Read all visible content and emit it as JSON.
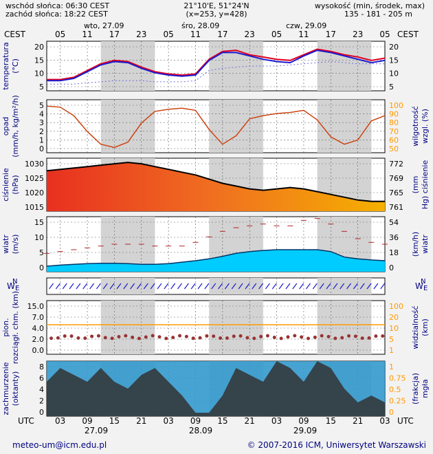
{
  "header": {
    "sunrise": "wschód słońca: 06:30 CEST",
    "sunset": "zachód słońca: 18:22 CEST",
    "coords": "21°10'E, 51°24'N",
    "grid": "(x=253,  y=428)",
    "height_title": "wysokość (min, środek, max)",
    "height_values": "135 - 181 - 205 m"
  },
  "top_axis": {
    "tz_left": "CEST",
    "tz_right": "CEST",
    "day_labels": [
      "wto, 27.09",
      "śro, 28.09",
      "czw, 29.09"
    ],
    "hour_labels": [
      "05",
      "11",
      "17",
      "23",
      "05",
      "11",
      "17",
      "23",
      "05",
      "11",
      "17",
      "23",
      "05"
    ]
  },
  "bottom_axis": {
    "tz_left": "UTC",
    "tz_right": "UTC",
    "hour_labels": [
      "03",
      "09",
      "15",
      "21",
      "03",
      "09",
      "15",
      "21",
      "03",
      "09",
      "15",
      "21",
      "03"
    ],
    "date_labels": [
      "27.09",
      "28.09",
      "29.09"
    ]
  },
  "footer": {
    "email": "meteo-um@icm.edu.pl",
    "copyright": "© 2007-2016 ICM, Uniwersytet Warszawski"
  },
  "colors": {
    "panel_white": "#ffffff",
    "panel_gray": "#d3d3d3",
    "axis_text": "#000080",
    "orange_axis": "#ff9900",
    "temp_red": "#e00020",
    "temp_blue": "#1a1ad0",
    "humidity": "#cc4411",
    "wind_dark": "#006699",
    "wind_green": "#008800",
    "wind_cyan": "#00ccff",
    "cloud_dark": "#333333",
    "cloud_blue": "#3399cc"
  },
  "chart_data": [
    {
      "type": "line",
      "panel": "temperature",
      "ylabel": "temperatura (°C)",
      "ylim": [
        0,
        22
      ],
      "yticks": [
        "20",
        "15",
        "10",
        "5"
      ],
      "yticks_right": [
        "20",
        "15",
        "10",
        "5"
      ],
      "x_hours": [
        0,
        3,
        6,
        9,
        12,
        15,
        18,
        21,
        24,
        27,
        30,
        33,
        36,
        39,
        42,
        45,
        48,
        51,
        54,
        57,
        60,
        63,
        66,
        69,
        72,
        75
      ],
      "series": [
        {
          "values": [
            5,
            5,
            6,
            9,
            12,
            13.5,
            13,
            10.5,
            8.5,
            7.5,
            7,
            7.5,
            14,
            17.5,
            18,
            16,
            15,
            14,
            13.5,
            16,
            18.5,
            17.5,
            16,
            15,
            13.5,
            14.5
          ]
        },
        {
          "values": [
            4.5,
            4.5,
            5.5,
            8.5,
            11.5,
            13,
            12.5,
            10,
            8,
            7,
            6.5,
            7,
            13.5,
            17,
            17,
            15.5,
            14,
            13,
            12.5,
            15.5,
            18,
            17,
            15.5,
            14,
            12.5,
            13.5
          ]
        },
        {
          "values": [
            3,
            3,
            3,
            3.5,
            4,
            4.5,
            4.5,
            4.5,
            4,
            4,
            4,
            4.5,
            9,
            10,
            10.5,
            11,
            11,
            11,
            11.5,
            12,
            12.5,
            13,
            12.5,
            12,
            12,
            12
          ]
        }
      ]
    },
    {
      "type": "line",
      "panel": "precipitation_humidity",
      "ylabel": "opad (mm/h, kg/m²/h)",
      "ylabel_right": "wilgotność wzgl. (%)",
      "ylim": [
        0,
        5
      ],
      "ylim_right": [
        50,
        100
      ],
      "yticks": [
        "5",
        "4",
        "3",
        "2",
        "1",
        "0"
      ],
      "yticks_right": [
        "100",
        "90",
        "80",
        "70",
        "60",
        "50"
      ],
      "x_hours": [
        0,
        3,
        6,
        9,
        12,
        15,
        18,
        21,
        24,
        27,
        30,
        33,
        36,
        39,
        42,
        45,
        48,
        51,
        54,
        57,
        60,
        63,
        66,
        69,
        72,
        75
      ],
      "series": [
        {
          "values": [
            94,
            93,
            85,
            70,
            58,
            55,
            60,
            78,
            89,
            91,
            92,
            90,
            72,
            58,
            66,
            82,
            85,
            87,
            88,
            90,
            81,
            65,
            58,
            62,
            80,
            85
          ]
        }
      ]
    },
    {
      "type": "area",
      "panel": "pressure",
      "ylabel": "ciśnienie (hPa)",
      "ylabel_right": "(mm Hg) ciśnienie",
      "ylim": [
        1012,
        1031
      ],
      "yticks": [
        "1030",
        "1025",
        "1020",
        "1015"
      ],
      "yticks_right": [
        "772",
        "769",
        "765",
        "761"
      ],
      "x_hours": [
        0,
        3,
        6,
        9,
        12,
        15,
        18,
        21,
        24,
        27,
        30,
        33,
        36,
        39,
        42,
        45,
        48,
        51,
        54,
        57,
        60,
        63,
        66,
        69,
        72,
        75
      ],
      "series": [
        {
          "values": [
            1026.5,
            1027,
            1027.5,
            1028,
            1028.5,
            1029,
            1029.5,
            1029,
            1028,
            1027,
            1026,
            1025,
            1023.5,
            1022,
            1021,
            1020,
            1019.5,
            1020,
            1020.5,
            1020,
            1019,
            1018,
            1017,
            1016,
            1015.5,
            1015.5
          ]
        }
      ]
    },
    {
      "type": "area",
      "panel": "wind",
      "ylabel": "wiatr (m/s)",
      "ylabel_right": "(km/h) wiatr",
      "ylim": [
        0,
        15
      ],
      "yticks": [
        "15",
        "10",
        "5",
        "0"
      ],
      "yticks_right": [
        "54",
        "36",
        "18",
        "0"
      ],
      "x_hours": [
        0,
        3,
        6,
        9,
        12,
        15,
        18,
        21,
        24,
        27,
        30,
        33,
        36,
        39,
        42,
        45,
        48,
        51,
        54,
        57,
        60,
        63,
        66,
        69,
        72,
        75
      ],
      "series": [
        {
          "name": "gust",
          "values": [
            5,
            5.5,
            6,
            6.5,
            7,
            7.5,
            7.5,
            7.5,
            7,
            7,
            7,
            8,
            9.5,
            11,
            12,
            12.5,
            13,
            12.5,
            12.5,
            14,
            14.5,
            13,
            11,
            9,
            8,
            7.5
          ]
        },
        {
          "name": "wind",
          "values": [
            1.5,
            1.8,
            2,
            2.2,
            2.3,
            2.3,
            2.2,
            2,
            2,
            2.2,
            2.6,
            3,
            3.5,
            4.2,
            5,
            5.5,
            5.8,
            6,
            6,
            6,
            6,
            5.5,
            4,
            3.5,
            3.2,
            3
          ]
        }
      ]
    },
    {
      "type": "scatter",
      "panel": "visibility_ceiling",
      "ylabel": "pion. rozciągł. chm. (km)",
      "ylabel_right": "widzialność (km)",
      "yticks": [
        "15.0",
        "7.0",
        "4.0",
        "2.0",
        "0.0"
      ],
      "yticks_right": [
        "100",
        "20",
        "10",
        "5",
        "1"
      ]
    },
    {
      "type": "area",
      "panel": "cloud_cover",
      "ylabel": "zachmurzenie (oktanty)",
      "ylabel_right": "(frakcja) mgła",
      "ylim": [
        0,
        8
      ],
      "yticks": [
        "8",
        "6",
        "4",
        "2",
        "0"
      ],
      "yticks_right": [
        "1",
        "0.75",
        "0.5",
        "0.25",
        "0"
      ],
      "x_hours": [
        0,
        3,
        6,
        9,
        12,
        15,
        18,
        21,
        24,
        27,
        30,
        33,
        36,
        39,
        42,
        45,
        48,
        51,
        54,
        57,
        60,
        63,
        66,
        69,
        72,
        75
      ],
      "series": [
        {
          "values": [
            5,
            7,
            6,
            5,
            7,
            5,
            4,
            6,
            7,
            5,
            3,
            0.5,
            0.5,
            3,
            7,
            6,
            5,
            8,
            7,
            5,
            8,
            7,
            4,
            2,
            3,
            2
          ]
        }
      ]
    }
  ]
}
